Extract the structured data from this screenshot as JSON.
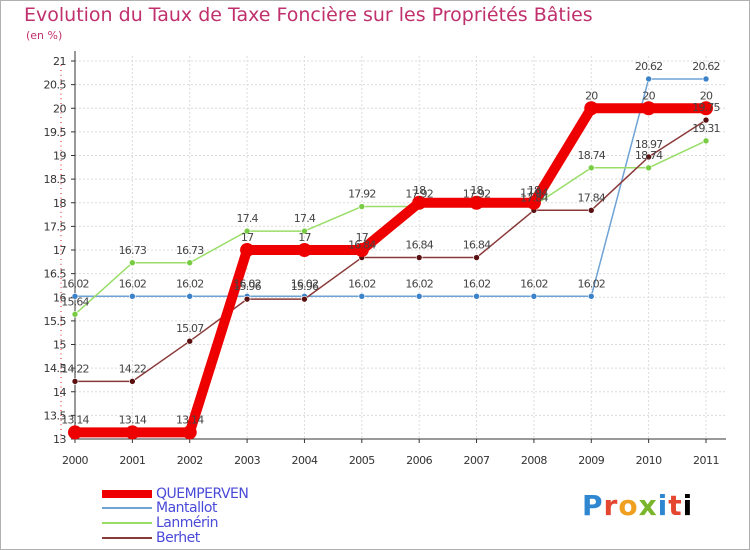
{
  "chart_data": {
    "type": "line",
    "title": "Evolution du Taux de Taxe Foncière sur les Propriétés Bâties",
    "subtitle": "(en %)",
    "categories": [
      "2000",
      "2001",
      "2002",
      "2003",
      "2004",
      "2005",
      "2006",
      "2007",
      "2008",
      "2009",
      "2010",
      "2011"
    ],
    "ylim": [
      13,
      21
    ],
    "yticks": [
      "13",
      "13.5",
      "14",
      "14.5",
      "15",
      "15.5",
      "16",
      "16.5",
      "17",
      "17.5",
      "18",
      "18.5",
      "19",
      "19.5",
      "20",
      "20.5",
      "21"
    ],
    "grid": true,
    "series": [
      {
        "name": "QUEMPERVEN",
        "color": "#ee0000",
        "marker": "#ee0000",
        "values": [
          13.14,
          13.14,
          13.14,
          17,
          17,
          17,
          18,
          18,
          18,
          20,
          20,
          20
        ],
        "labels": [
          "13.14",
          "13.14",
          "13.14",
          "17",
          "17",
          "17",
          "18",
          "18",
          "18",
          "20",
          "20",
          "20"
        ]
      },
      {
        "name": "Mantallot",
        "color": "#6ea3d6",
        "marker": "#3b82c9",
        "values": [
          16.02,
          16.02,
          16.02,
          16.02,
          16.02,
          16.02,
          16.02,
          16.02,
          16.02,
          16.02,
          20.62,
          20.62
        ],
        "labels": [
          "16.02",
          "16.02",
          "16.02",
          "16.02",
          "16.02",
          "16.02",
          "16.02",
          "16.02",
          "16.02",
          "16.02",
          "20.62",
          "20.62"
        ]
      },
      {
        "name": "Lanmérin",
        "color": "#99dd66",
        "marker": "#77cc44",
        "values": [
          15.64,
          16.73,
          16.73,
          17.4,
          17.4,
          17.92,
          17.92,
          17.92,
          17.94,
          18.74,
          18.74,
          19.31
        ],
        "labels": [
          "15.64",
          "16.73",
          "16.73",
          "17.4",
          "17.4",
          "17.92",
          "17.92",
          "17.92",
          "17.94",
          "18.74",
          "18.74",
          "19.31"
        ]
      },
      {
        "name": "Berhet",
        "color": "#8b3a3a",
        "marker": "#5a1010",
        "values": [
          14.22,
          14.22,
          15.07,
          15.96,
          15.96,
          16.84,
          16.84,
          16.84,
          17.84,
          17.84,
          18.97,
          19.75
        ],
        "labels": [
          "14.22",
          "14.22",
          "15.07",
          "15.96",
          "15.96",
          "16.84",
          "16.84",
          "16.84",
          "17.84",
          "17.84",
          "18.97",
          "19.75"
        ]
      }
    ],
    "legend": {
      "placement": "bottom-left"
    }
  },
  "brand": {
    "letters": [
      "P",
      "r",
      "o",
      "x",
      "i",
      "t",
      "i"
    ]
  }
}
